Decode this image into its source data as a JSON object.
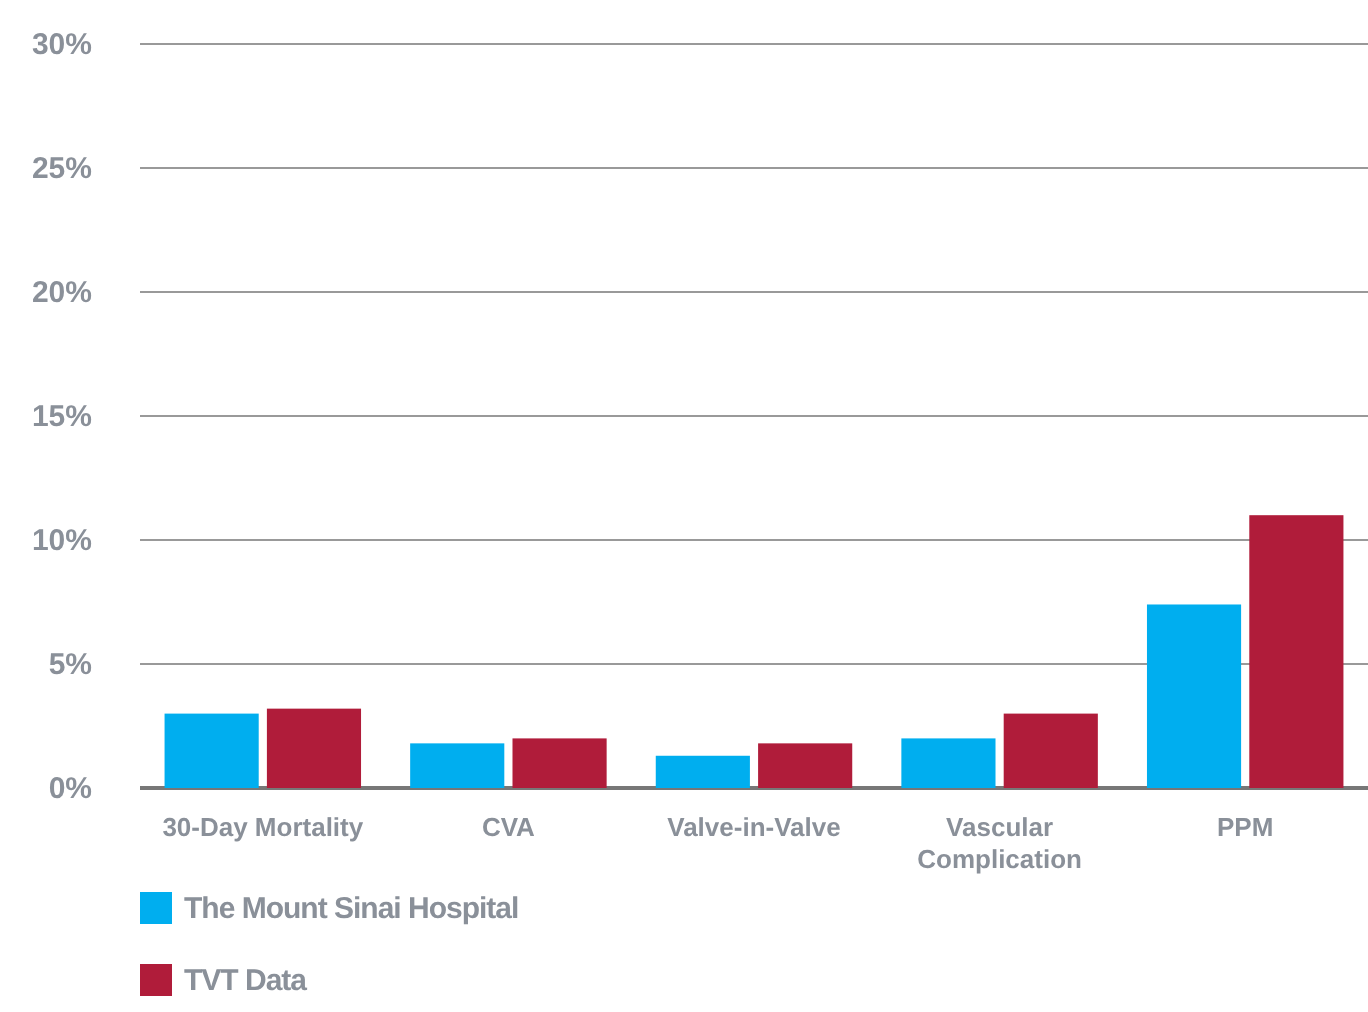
{
  "chart_data": {
    "type": "bar",
    "categories": [
      "30-Day Mortality",
      "CVA",
      "Valve-in-Valve",
      "Vascular Complication",
      "PPM"
    ],
    "series": [
      {
        "name": "The Mount Sinai Hospital",
        "color": "#00aeef",
        "values": [
          3.0,
          1.8,
          1.3,
          2.0,
          7.4
        ]
      },
      {
        "name": "TVT Data",
        "color": "#b01c3a",
        "values": [
          3.2,
          2.0,
          1.8,
          3.0,
          11.0
        ]
      }
    ],
    "ylim": [
      0,
      30
    ],
    "yticks": [
      {
        "value": 0,
        "label": "0%"
      },
      {
        "value": 5,
        "label": "5%"
      },
      {
        "value": 10,
        "label": "10%"
      },
      {
        "value": 15,
        "label": "15%"
      },
      {
        "value": 20,
        "label": "20%"
      },
      {
        "value": 25,
        "label": "25%"
      },
      {
        "value": 30,
        "label": "30%"
      }
    ],
    "grid": "y",
    "legend": "bottom left"
  }
}
